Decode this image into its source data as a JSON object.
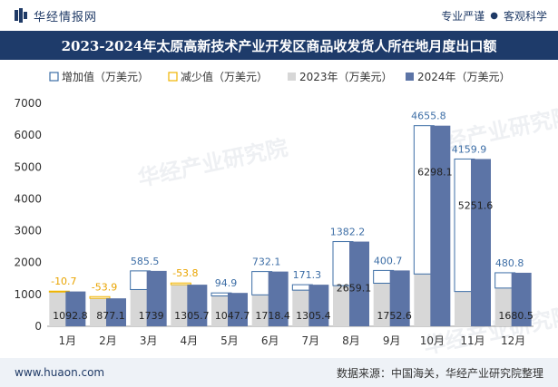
{
  "header": {
    "brand_name": "华经情报网",
    "tagline_left": "专业严谨",
    "tagline_sep": "●",
    "tagline_right": "客观科学"
  },
  "title": "2023-2024年太原高新技术产业开发区商品收发货人所在地月度出口额",
  "watermark": "华经产业研究院",
  "footer": {
    "url": "www.huaon.com",
    "source": "数据来源：中国海关，华经产业研究院整理"
  },
  "colors": {
    "increase": "#3d6ea6",
    "decrease": "#f0b400",
    "y2023": "#d7d7d7",
    "y2024": "#5c74a6",
    "label_pos": "#3d6ea6",
    "label_neg": "#e9a400",
    "axis_text": "#333333"
  },
  "chart_data": {
    "type": "bar",
    "categories": [
      "1月",
      "2月",
      "3月",
      "4月",
      "5月",
      "6月",
      "7月",
      "8月",
      "9月",
      "10月",
      "11月",
      "12月"
    ],
    "series": [
      {
        "name": "2023年（万美元）",
        "values": [
          1103.5,
          931.0,
          1153.5,
          1359.5,
          952.8,
          986.3,
          1134.1,
          1276.9,
          1351.9,
          1642.3,
          1091.7,
          1199.7
        ]
      },
      {
        "name": "2024年（万美元）",
        "values": [
          1092.8,
          877.1,
          1739,
          1305.7,
          1047.7,
          1718.4,
          1305.4,
          2659.1,
          1752.6,
          6298.1,
          5251.6,
          1680.5
        ]
      },
      {
        "name": "增加值（万美元）",
        "values": [
          null,
          null,
          585.5,
          null,
          94.9,
          732.1,
          171.3,
          1382.2,
          400.7,
          4655.8,
          4159.9,
          480.8
        ]
      },
      {
        "name": "减少值（万美元）",
        "values": [
          -10.7,
          -53.9,
          null,
          -53.8,
          null,
          null,
          null,
          null,
          null,
          null,
          null,
          null
        ]
      }
    ],
    "ylim": [
      0,
      7000
    ],
    "yticks": [
      0,
      1000,
      2000,
      3000,
      4000,
      5000,
      6000,
      7000
    ],
    "legend_position": "top-left",
    "grid": false
  }
}
